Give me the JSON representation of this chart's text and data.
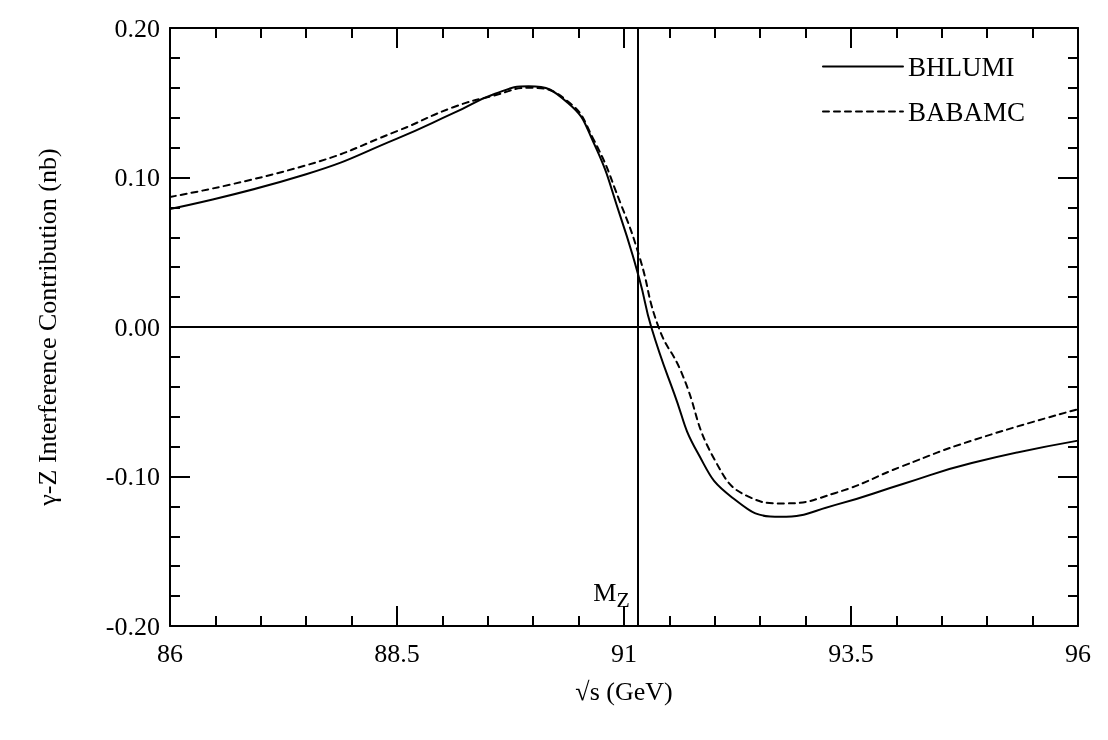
{
  "chart_data": {
    "type": "line",
    "xlabel": "√s (GeV)",
    "ylabel": "γ-Z Interference Contribution (nb)",
    "xlim": [
      86,
      96
    ],
    "xticks": [
      86,
      88.5,
      91,
      93.5,
      96
    ],
    "ylim": [
      -0.2,
      0.2
    ],
    "yticks": [
      {
        "value": -0.2,
        "label": "-0.20"
      },
      {
        "value": -0.1,
        "label": "-0.10"
      },
      {
        "value": 0,
        "label": "0.00"
      },
      {
        "value": 0.1,
        "label": "0.10"
      },
      {
        "value": 0.2,
        "label": "0.20"
      }
    ],
    "marker": "none",
    "legend": "top right",
    "ref_lines": [
      {
        "axis": "y",
        "value": 0,
        "label": null
      },
      {
        "axis": "x",
        "value": 91.15,
        "label": "M$_{Z}$"
      }
    ],
    "series": [
      {
        "name": "BHLUMI",
        "color": "#000000",
        "line_style": "solid",
        "x": [
          86,
          87.49,
          88.5,
          89.12,
          89.58,
          89.95,
          90.38,
          90.66,
          90.96,
          91.17,
          91.3,
          91.55,
          91.81,
          92.19,
          92.72,
          93.33,
          94.07,
          94.83,
          96
        ],
        "values": [
          0.079,
          0.102,
          0.126,
          0.143,
          0.156,
          0.161,
          0.15,
          0.124,
          0.074,
          0.032,
          0,
          -0.044,
          -0.084,
          -0.114,
          -0.127,
          -0.119,
          -0.105,
          -0.091,
          -0.076
        ]
      },
      {
        "name": "BABAMC",
        "color": "#000000",
        "line_style": "dashed",
        "x": [
          86,
          87.49,
          88.5,
          89.12,
          89.58,
          89.95,
          90.38,
          90.66,
          90.96,
          91.17,
          91.38,
          91.63,
          92,
          92.39,
          92.75,
          93.33,
          94.07,
          94.83,
          96
        ],
        "values": [
          0.087,
          0.108,
          0.131,
          0.147,
          0.155,
          0.16,
          0.151,
          0.126,
          0.083,
          0.047,
          0,
          -0.03,
          -0.089,
          -0.114,
          -0.118,
          -0.111,
          -0.093,
          -0.076,
          -0.055
        ]
      }
    ]
  }
}
